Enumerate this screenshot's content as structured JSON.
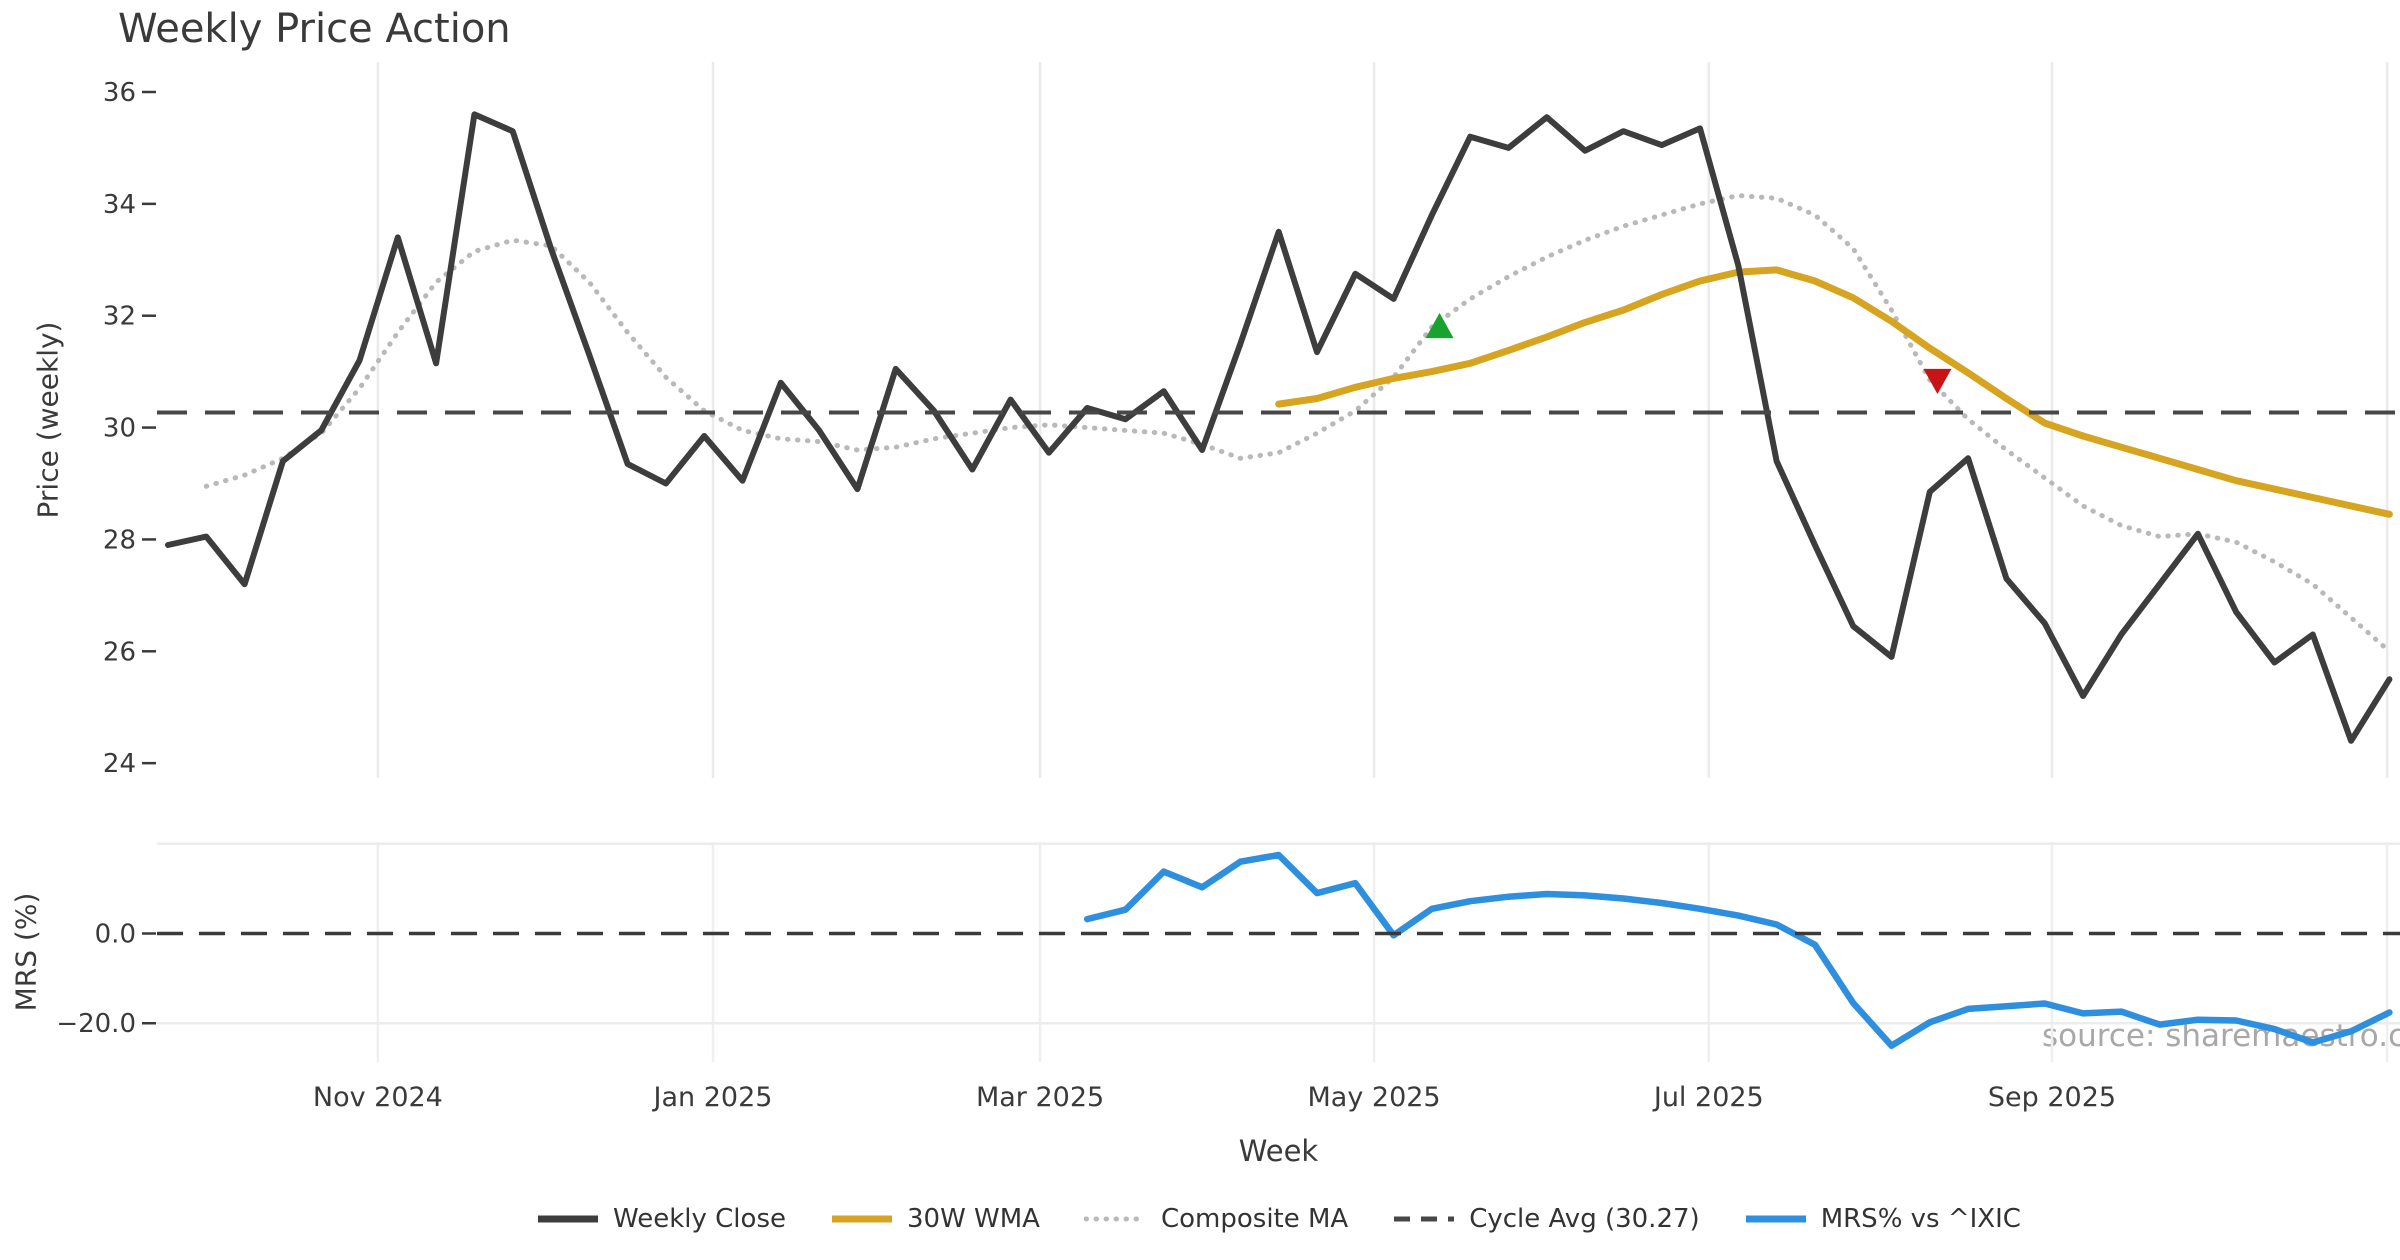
{
  "title": "Weekly Price Action",
  "xlabel": "Week",
  "watermark": "source: sharemaestro.com",
  "legend": [
    {
      "label": "Weekly Close",
      "style": "solid",
      "color": "#3d3d3d"
    },
    {
      "label": "30W WMA",
      "style": "solid",
      "color": "#d6a420"
    },
    {
      "label": "Composite MA",
      "style": "dotted",
      "color": "#b9b9b9"
    },
    {
      "label": "Cycle Avg (30.27)",
      "style": "dashed",
      "color": "#474747"
    },
    {
      "label": "MRS% vs ^IXIC",
      "style": "solid",
      "color": "#2f8fdf"
    }
  ],
  "chart_data": [
    {
      "type": "line",
      "panel": "price",
      "title": "Weekly Price Action",
      "ylabel": "Price (weekly)",
      "xlabel": "Week",
      "ylim": [
        23.7,
        36.55
      ],
      "yticks": [
        36,
        34,
        32,
        30,
        28,
        26,
        24
      ],
      "ytick_labels": [
        "36",
        "34",
        "32",
        "30",
        "28",
        "26",
        "24"
      ],
      "grid": "vertical-months",
      "xticks": [
        {
          "label": "Nov 2024",
          "pos": 5.48
        },
        {
          "label": "Jan 2025",
          "pos": 14.23
        },
        {
          "label": "Mar 2025",
          "pos": 22.77
        },
        {
          "label": "May 2025",
          "pos": 31.49
        },
        {
          "label": "Jul 2025",
          "pos": 40.23
        },
        {
          "label": "Sep 2025",
          "pos": 49.19
        },
        {
          "label": "",
          "pos": 57.94
        }
      ],
      "series": [
        {
          "name": "Weekly Close",
          "color": "#3d3d3d",
          "style": "solid",
          "width": 6,
          "values": [
            27.9,
            28.05,
            27.2,
            29.4,
            29.95,
            31.2,
            33.4,
            31.15,
            35.6,
            35.3,
            33.2,
            31.3,
            29.35,
            29.0,
            29.85,
            29.05,
            30.8,
            29.95,
            28.9,
            31.05,
            30.3,
            29.25,
            30.5,
            29.55,
            30.35,
            30.15,
            30.65,
            29.6,
            31.5,
            33.5,
            31.35,
            32.75,
            32.3,
            33.8,
            35.2,
            35.0,
            35.55,
            34.95,
            35.3,
            35.05,
            35.35,
            32.9,
            29.4,
            27.9,
            26.45,
            25.9,
            28.85,
            29.45,
            27.3,
            26.5,
            25.2,
            26.3,
            27.2,
            28.1,
            26.7,
            25.8,
            26.3,
            24.4,
            25.5
          ]
        },
        {
          "name": "30W WMA",
          "color": "#d6a420",
          "style": "solid",
          "width": 7,
          "values": [
            null,
            null,
            null,
            null,
            null,
            null,
            null,
            null,
            null,
            null,
            null,
            null,
            null,
            null,
            null,
            null,
            null,
            null,
            null,
            null,
            null,
            null,
            null,
            null,
            null,
            null,
            null,
            null,
            null,
            30.42,
            30.52,
            30.72,
            30.88,
            31.0,
            31.15,
            31.38,
            31.62,
            31.88,
            32.1,
            32.38,
            32.62,
            32.78,
            32.82,
            32.62,
            32.32,
            31.9,
            31.42,
            30.98,
            30.52,
            30.08,
            29.85,
            29.65,
            29.45,
            29.25,
            29.05,
            28.9,
            28.75,
            28.6,
            28.45
          ]
        },
        {
          "name": "Composite MA",
          "color": "#b9b9b9",
          "style": "dotted",
          "width": 5,
          "values": [
            null,
            28.95,
            29.15,
            29.45,
            29.9,
            30.7,
            31.7,
            32.6,
            33.15,
            33.35,
            33.25,
            32.6,
            31.7,
            30.9,
            30.3,
            29.95,
            29.8,
            29.75,
            29.6,
            29.65,
            29.8,
            29.9,
            30.0,
            30.05,
            30.0,
            29.95,
            29.9,
            29.7,
            29.45,
            29.55,
            29.9,
            30.3,
            30.9,
            31.8,
            32.3,
            32.7,
            33.05,
            33.35,
            33.6,
            33.8,
            34.0,
            34.15,
            34.1,
            33.8,
            33.2,
            32.1,
            30.85,
            30.15,
            29.6,
            29.1,
            28.6,
            28.25,
            28.05,
            28.1,
            27.95,
            27.6,
            27.2,
            26.6,
            26.0
          ]
        },
        {
          "name": "Cycle Avg (30.27)",
          "color": "#474747",
          "style": "dashed",
          "width": 4,
          "const": 30.27
        }
      ],
      "markers": [
        {
          "shape": "triangle-up",
          "name": "buy-signal",
          "color": "#1aa22e",
          "week": 33.2,
          "price": 31.8
        },
        {
          "shape": "triangle-down",
          "name": "sell-signal",
          "color": "#c81414",
          "week": 46.2,
          "price": 30.85
        }
      ]
    },
    {
      "type": "line",
      "panel": "mrs",
      "ylabel": "MRS (%)",
      "ylim": [
        -29,
        24
      ],
      "yticks": [
        0,
        -20
      ],
      "ytick_labels": [
        "0.0",
        "−20.0"
      ],
      "gridlines_y": [
        20,
        -20
      ],
      "series": [
        {
          "name": "MRS% vs ^IXIC",
          "color": "#2f8fdf",
          "style": "solid",
          "width": 6.5,
          "values": [
            null,
            null,
            null,
            null,
            null,
            null,
            null,
            null,
            null,
            null,
            null,
            null,
            null,
            null,
            null,
            null,
            null,
            null,
            null,
            null,
            null,
            null,
            null,
            null,
            3.2,
            5.3,
            13.8,
            10.3,
            16.0,
            17.5,
            9.0,
            11.2,
            -0.4,
            5.5,
            7.2,
            8.2,
            8.8,
            8.5,
            7.8,
            6.8,
            5.5,
            4.0,
            2.0,
            -2.5,
            -15.5,
            -25.0,
            -19.8,
            -16.8,
            -16.2,
            -15.6,
            -17.8,
            -17.4,
            -20.3,
            -19.2,
            -19.4,
            -21.3,
            -24.3,
            -21.8,
            -17.6
          ]
        },
        {
          "name": "Zero line",
          "color": "#3a3a3a",
          "style": "dashed",
          "width": 3.5,
          "const": 0
        }
      ]
    }
  ]
}
